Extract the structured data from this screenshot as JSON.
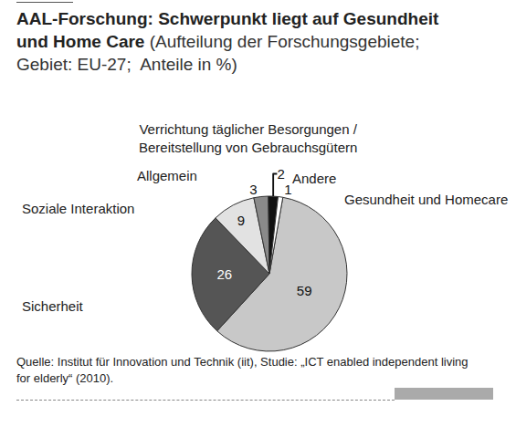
{
  "chart_data": {
    "type": "pie",
    "title": "AAL-Forschung: Schwerpunkt liegt auf Gesundheit und Home Care",
    "subtitle": "(Aufteilung der Forschungsgebiete; Gebiet: EU-27;  Anteile in %)",
    "categories": [
      "Gesundheit und Homecare",
      "Sicherheit",
      "Soziale Interaktion",
      "Allgemein",
      "Verrichtung täglicher Besorgungen / Bereitstellung von Gebrauchsgütern",
      "Andere"
    ],
    "values": [
      59,
      26,
      9,
      3,
      2,
      1
    ],
    "colors": [
      "#c8c8c8",
      "#555555",
      "#e2e2e2",
      "#8a8a8a",
      "#111111",
      "#ffffff"
    ],
    "data_labels": true,
    "source": "Quelle: Institut für Innovation und Technik (iit), Studie: „ICT enabled independent living for elderly“ (2010)."
  }
}
